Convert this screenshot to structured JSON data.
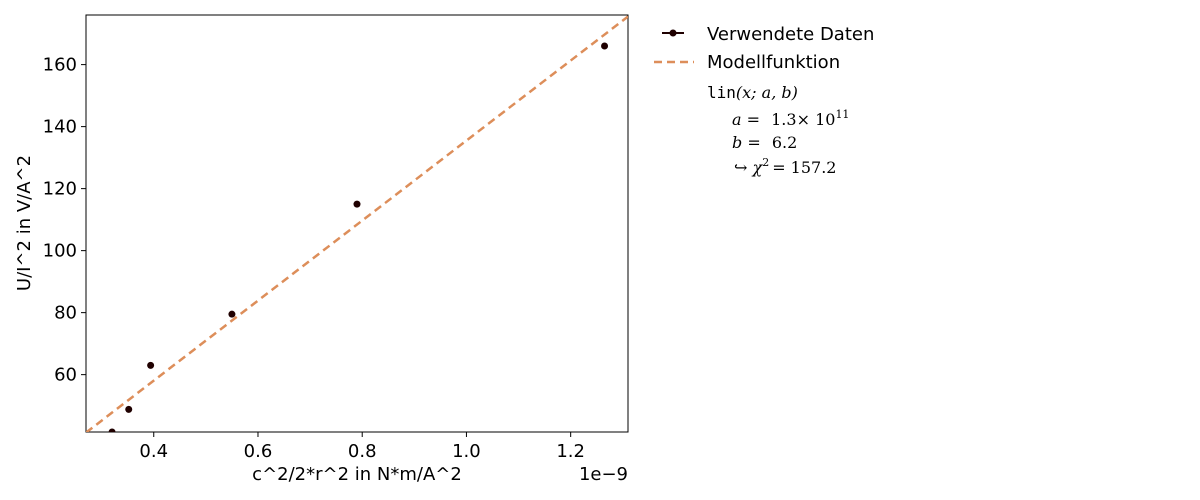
{
  "chart_data": {
    "type": "scatter",
    "xlabel": "c^2/2*r^2 in N*m/A^2",
    "ylabel": "U/I^2 in V/A^2",
    "x_offset_text": "1e−9",
    "xlim": [
      0.27,
      1.31
    ],
    "ylim": [
      41.5,
      176
    ],
    "x_ticks": [
      0.4,
      0.6,
      0.8,
      1.0,
      1.2
    ],
    "x_tick_labels": [
      "0.4",
      "0.6",
      "0.8",
      "1.0",
      "1.2"
    ],
    "y_ticks": [
      60,
      80,
      100,
      120,
      140,
      160
    ],
    "y_tick_labels": [
      "60",
      "80",
      "100",
      "120",
      "140",
      "160"
    ],
    "grid": false,
    "legend_position": "outside-right-top",
    "series": [
      {
        "name": "Verwendete Daten",
        "kind": "points",
        "color": "#1f0000",
        "x": [
          0.32,
          0.352,
          0.394,
          0.55,
          0.79,
          1.265
        ],
        "y": [
          41.5,
          48.8,
          63.0,
          79.5,
          115.0,
          166.0
        ]
      },
      {
        "name": "Modellfunktion",
        "kind": "line",
        "color": "#dd8e5a",
        "style": "dashed",
        "x": [
          0.27,
          1.31
        ],
        "y": [
          41.3,
          175.5
        ]
      }
    ],
    "model_annotation": {
      "func_name": "lin",
      "func_args": "(x; a, b)",
      "a_label": "a =",
      "a_value": "1.3",
      "a_times": "× 10",
      "a_exp": "11",
      "b_label": "b =",
      "b_value": "6.2",
      "chi_prefix": "↪ χ",
      "chi_exp": "2",
      "chi_value": "= 157.2"
    }
  }
}
